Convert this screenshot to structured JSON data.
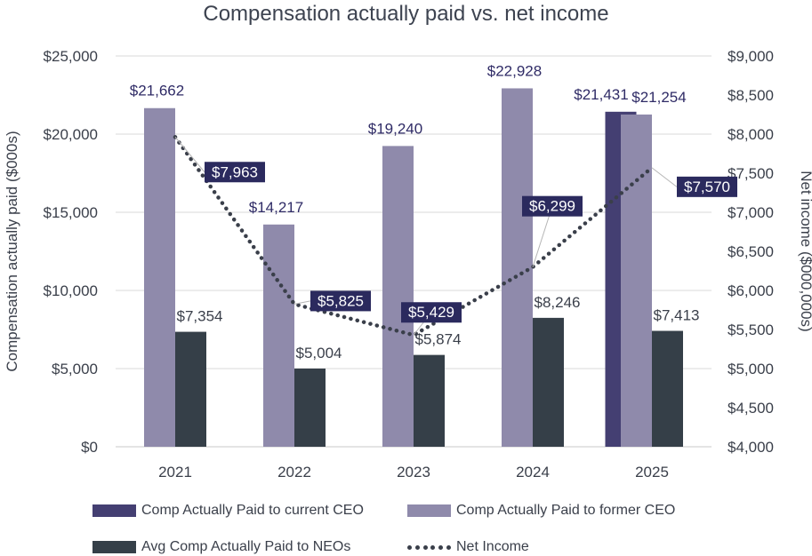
{
  "chart_data": {
    "type": "bar",
    "title": "Compensation actually paid vs. net income",
    "categories": [
      "2021",
      "2022",
      "2023",
      "2024",
      "2025"
    ],
    "ylabel": "Compensation actually paid ($000s)",
    "y2label": "Net income ($000,000s)",
    "ylim": [
      0,
      25000
    ],
    "y2lim": [
      4000,
      9000
    ],
    "y_ticks": [
      "$0",
      "$5,000",
      "$10,000",
      "$15,000",
      "$20,000",
      "$25,000"
    ],
    "y2_ticks": [
      "$4,000",
      "$4,500",
      "$5,000",
      "$5,500",
      "$6,000",
      "$6,500",
      "$7,000",
      "$7,500",
      "$8,000",
      "$8,500",
      "$9,000"
    ],
    "series": [
      {
        "name": "Comp Actually Paid to current CEO",
        "color": "#443f72",
        "values": [
          null,
          null,
          null,
          null,
          21431
        ],
        "labels": [
          "",
          "",
          "",
          "",
          "$21,431"
        ]
      },
      {
        "name": "Comp Actually Paid to former CEO",
        "color": "#8f8aab",
        "values": [
          21662,
          14217,
          19240,
          22928,
          21254
        ],
        "labels": [
          "$21,662",
          "$14,217",
          "$19,240",
          "$22,928",
          "$21,254"
        ]
      },
      {
        "name": "Avg Comp Actually Paid to NEOs",
        "color": "#353f48",
        "values": [
          7354,
          5004,
          5874,
          8246,
          7413
        ],
        "labels": [
          "$7,354",
          "$5,004",
          "$5,874",
          "$8,246",
          "$7,413"
        ]
      },
      {
        "name": "Net Income",
        "color": "#3a3f4a",
        "axis": "right",
        "values": [
          7963,
          5825,
          5429,
          6299,
          7570
        ],
        "labels": [
          "$7,963",
          "$5,825",
          "$5,429",
          "$6,299",
          "$7,570"
        ]
      }
    ]
  },
  "colors": {
    "label_box": "#2b2a5e",
    "label_text": "#ffffff",
    "value_purple": "#2f2b66",
    "value_dark": "#3a3f4a"
  }
}
